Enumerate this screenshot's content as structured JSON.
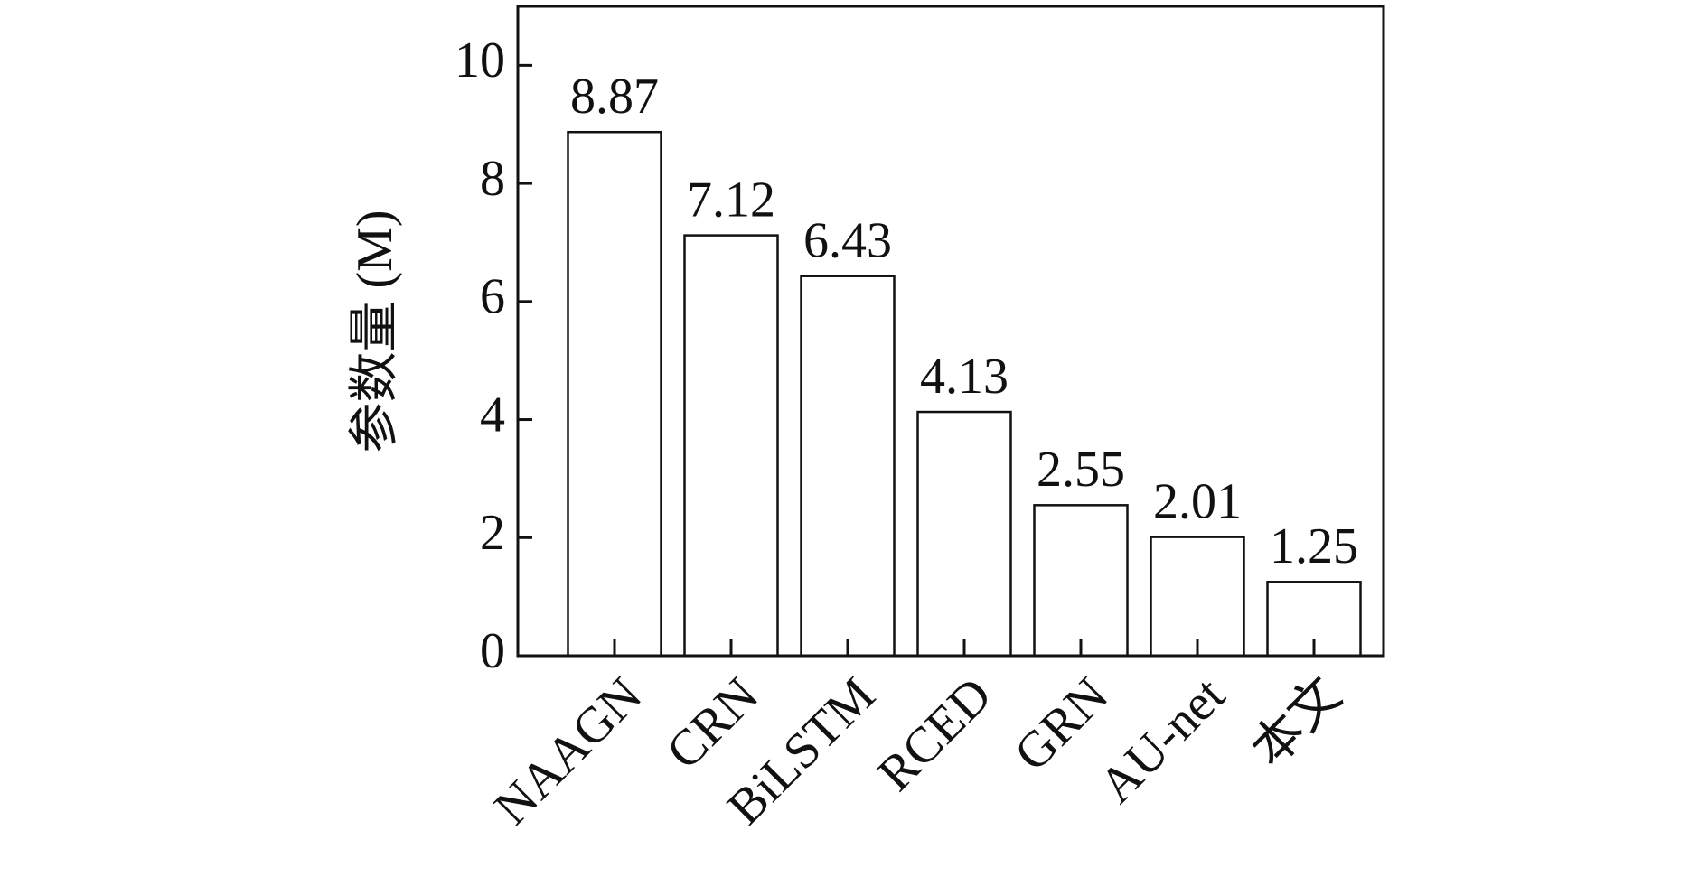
{
  "chart_data": {
    "type": "bar",
    "ylabel": "参数量 (M)",
    "categories": [
      "NAAGN",
      "CRN",
      "BiLSTM",
      "RCED",
      "GRN",
      "AU-net",
      "本文"
    ],
    "values": [
      8.87,
      7.12,
      6.43,
      4.13,
      2.55,
      2.01,
      1.25
    ],
    "color": "#ffffff",
    "ylim": [
      0,
      11
    ],
    "yticks": [
      0,
      2,
      4,
      6,
      8,
      10
    ],
    "grid": false
  }
}
